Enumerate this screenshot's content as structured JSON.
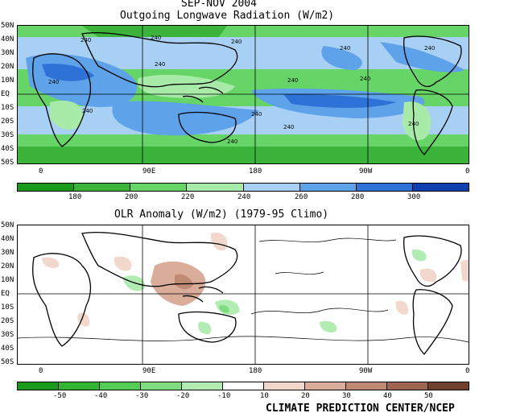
{
  "header": {
    "season": "SEP-NOV 2004",
    "olr_title": "Outgoing Longwave Radiation (W/m2)",
    "anom_title": "OLR Anomaly (W/m2) (1979-95 Climo)"
  },
  "lat_labels": [
    "50N",
    "40N",
    "30N",
    "20N",
    "10N",
    "EQ",
    "10S",
    "20S",
    "30S",
    "40S",
    "50S"
  ],
  "lon_labels": [
    "0",
    "90E",
    "180",
    "90W",
    "0"
  ],
  "contour_label": "240",
  "olr_colorbar": {
    "labels": [
      "180",
      "200",
      "220",
      "240",
      "260",
      "280",
      "300"
    ],
    "colors": [
      "#1a9a1a",
      "#3cb43c",
      "#66d466",
      "#a8eba8",
      "#a8d0f5",
      "#5ea2ea",
      "#2e72d8",
      "#1040b0"
    ]
  },
  "anom_colorbar": {
    "labels": [
      "-50",
      "-40",
      "-30",
      "-20",
      "-10",
      "10",
      "20",
      "30",
      "40",
      "50"
    ],
    "colors": [
      "#1a9a1a",
      "#33b433",
      "#55cc55",
      "#80dc80",
      "#b3ecb3",
      "#ffffff",
      "#f2d8cc",
      "#d9ad99",
      "#bf8a73",
      "#9e6650",
      "#70402e"
    ]
  },
  "credit": "CLIMATE PREDICTION CENTER/NCEP"
}
